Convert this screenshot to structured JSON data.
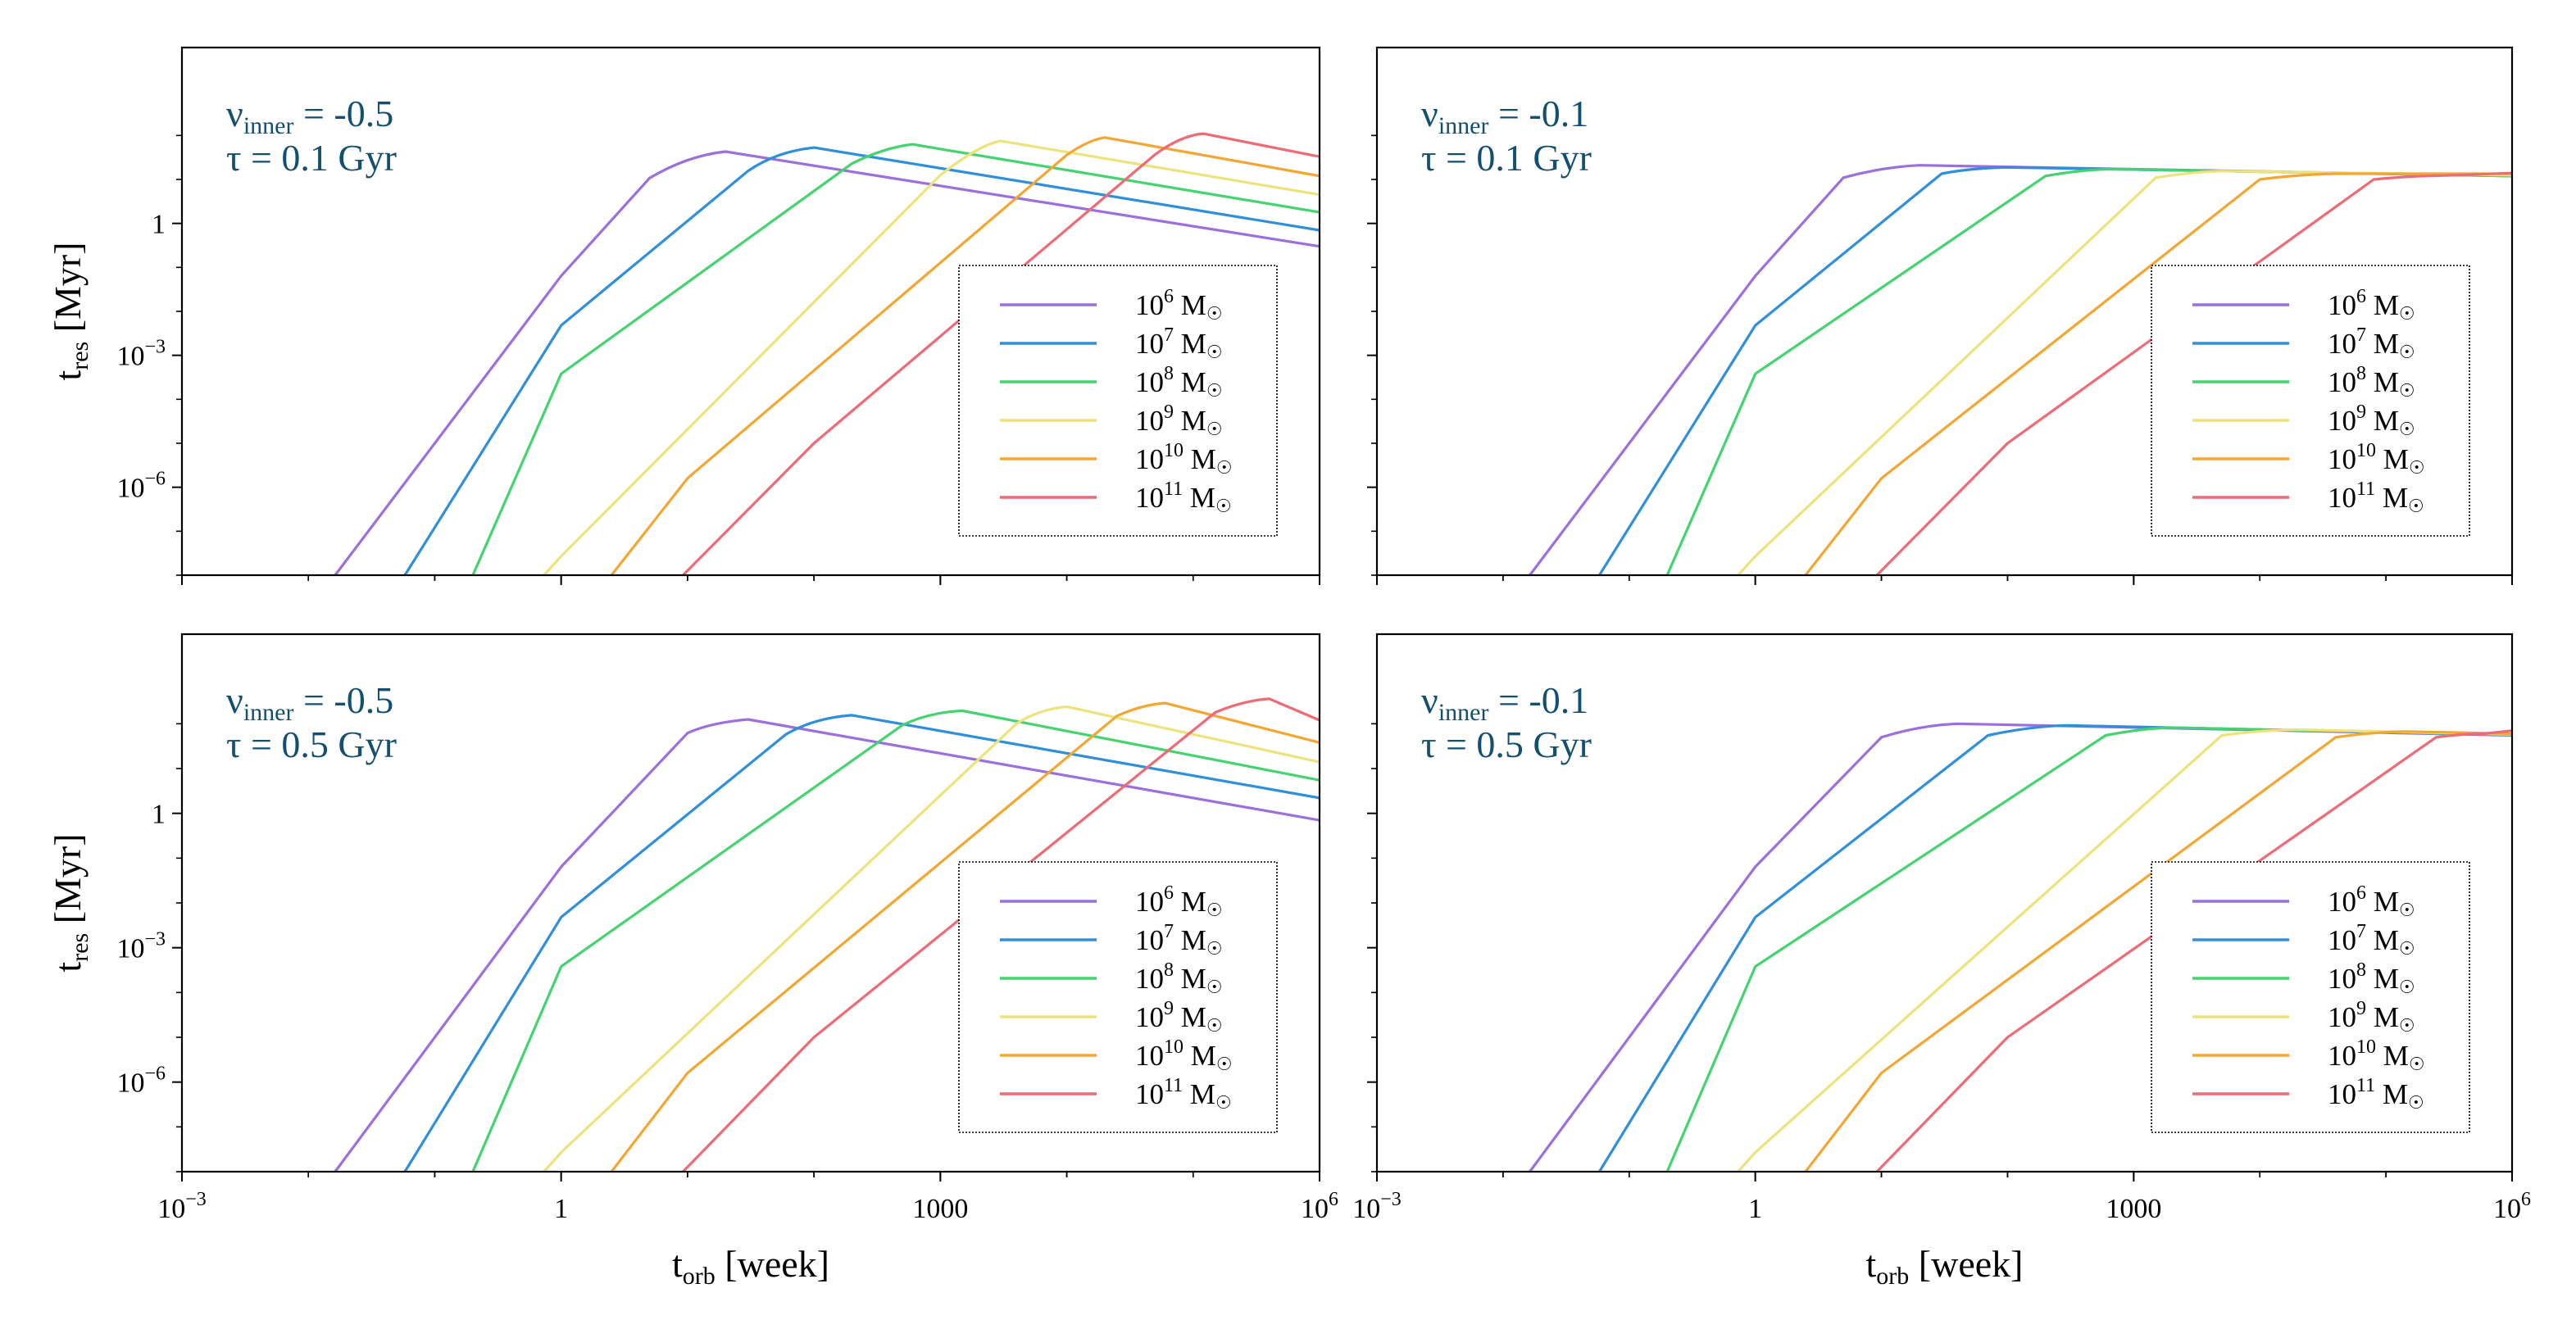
{
  "figure": {
    "xlabel_main": "t",
    "xlabel_sub": "orb",
    "xlabel_unit": " [week]",
    "ylabel_main": "t",
    "ylabel_sub": "res",
    "ylabel_unit": " [Myr]"
  },
  "chart_data": [
    {
      "type": "line",
      "panel": "top-left",
      "annotation": {
        "nu_main": "ν",
        "nu_sub": "inner",
        "nu_value": " = -0.5",
        "tau": "τ = 0.1 Gyr"
      },
      "x_scale": "log",
      "y_scale": "log",
      "xlim": [
        0.001,
        1000000
      ],
      "ylim": [
        1e-08,
        10000
      ],
      "xticks": [
        0.001,
        1,
        1000,
        1000000
      ],
      "yticks": [
        1e-06,
        0.001,
        1
      ],
      "show_xticklabels": false,
      "show_yticklabels": true,
      "show_xlabel": false,
      "show_ylabel": true,
      "legend_loc": "lower right",
      "series": [
        {
          "name": "10^6 M☉",
          "base": "10",
          "exp": "6",
          "unit": " M",
          "sun": "☉",
          "color": "#9b6fdc",
          "points": [
            [
              0.0163,
              1e-08
            ],
            [
              1,
              0.064
            ],
            [
              5,
              10.7
            ],
            [
              10,
              35
            ],
            [
              20,
              43
            ],
            [
              1000000,
              0.3
            ]
          ]
        },
        {
          "name": "10^7 M☉",
          "base": "10",
          "exp": "7",
          "unit": " M",
          "sun": "☉",
          "color": "#2f8fda",
          "points": [
            [
              0.058,
              1e-08
            ],
            [
              1,
              0.0048
            ],
            [
              30,
              15.5
            ],
            [
              50,
              43
            ],
            [
              100,
              53
            ],
            [
              1000000,
              0.7
            ]
          ]
        },
        {
          "name": "10^8 M☉",
          "base": "10",
          "exp": "8",
          "unit": " M",
          "sun": "☉",
          "color": "#45d36f",
          "points": [
            [
              0.2,
              1e-08
            ],
            [
              1,
              0.00038
            ],
            [
              200,
              23
            ],
            [
              350,
              52
            ],
            [
              600,
              63
            ],
            [
              1000000,
              1.8
            ]
          ]
        },
        {
          "name": "10^9 M☉",
          "base": "10",
          "exp": "9",
          "unit": " M",
          "sun": "☉",
          "color": "#ece37c",
          "points": [
            [
              0.73,
              1e-08
            ],
            [
              1,
              2.7e-08
            ],
            [
              1000,
              12.5
            ],
            [
              2000,
              60
            ],
            [
              3000,
              75
            ],
            [
              1000000,
              4.5
            ]
          ]
        },
        {
          "name": "10^10 M☉",
          "base": "10",
          "exp": "10",
          "unit": " M",
          "sun": "☉",
          "color": "#f3a733",
          "points": [
            [
              2.5,
              1e-08
            ],
            [
              10,
              1.6e-06
            ],
            [
              10000,
              36
            ],
            [
              15000,
              80
            ],
            [
              20000,
              90
            ],
            [
              1000000,
              12
            ]
          ]
        },
        {
          "name": "10^11 M☉",
          "base": "10",
          "exp": "11",
          "unit": " M",
          "sun": "☉",
          "color": "#ee6a75",
          "points": [
            [
              9.2,
              1e-08
            ],
            [
              100,
              1e-05
            ],
            [
              50000,
              37
            ],
            [
              80000,
              100
            ],
            [
              120000,
              110
            ],
            [
              1000000,
              33
            ]
          ]
        }
      ]
    },
    {
      "type": "line",
      "panel": "top-right",
      "annotation": {
        "nu_main": "ν",
        "nu_sub": "inner",
        "nu_value": " = -0.1",
        "tau": "τ = 0.1 Gyr"
      },
      "x_scale": "log",
      "y_scale": "log",
      "xlim": [
        0.001,
        1000000
      ],
      "ylim": [
        1e-08,
        10000
      ],
      "xticks": [
        0.001,
        1,
        1000,
        1000000
      ],
      "yticks": [
        1e-06,
        0.001,
        1
      ],
      "show_xticklabels": false,
      "show_yticklabels": false,
      "show_xlabel": false,
      "show_ylabel": false,
      "legend_loc": "lower right",
      "series": [
        {
          "name": "10^6 M☉",
          "base": "10",
          "exp": "6",
          "unit": " M",
          "sun": "☉",
          "color": "#9b6fdc",
          "points": [
            [
              0.0163,
              1e-08
            ],
            [
              1,
              0.064
            ],
            [
              5,
              11
            ],
            [
              10,
              19
            ],
            [
              20,
              21
            ],
            [
              1000000,
              12
            ]
          ]
        },
        {
          "name": "10^7 M☉",
          "base": "10",
          "exp": "7",
          "unit": " M",
          "sun": "☉",
          "color": "#2f8fda",
          "points": [
            [
              0.058,
              1e-08
            ],
            [
              1,
              0.0048
            ],
            [
              30,
              13.5
            ],
            [
              50,
              18
            ],
            [
              100,
              18.8
            ],
            [
              1000000,
              12
            ]
          ]
        },
        {
          "name": "10^8 M☉",
          "base": "10",
          "exp": "8",
          "unit": " M",
          "sun": "☉",
          "color": "#45d36f",
          "points": [
            [
              0.2,
              1e-08
            ],
            [
              1,
              0.00038
            ],
            [
              200,
              12
            ],
            [
              400,
              17
            ],
            [
              700,
              17.2
            ],
            [
              1000000,
              12
            ]
          ]
        },
        {
          "name": "10^9 M☉",
          "base": "10",
          "exp": "9",
          "unit": " M",
          "sun": "☉",
          "color": "#ece37c",
          "points": [
            [
              0.73,
              1e-08
            ],
            [
              1,
              2.7e-08
            ],
            [
              1500,
              11
            ],
            [
              3000,
              15
            ],
            [
              5000,
              15.5
            ],
            [
              1000000,
              12.5
            ]
          ]
        },
        {
          "name": "10^10 M☉",
          "base": "10",
          "exp": "10",
          "unit": " M",
          "sun": "☉",
          "color": "#f3a733",
          "points": [
            [
              2.5,
              1e-08
            ],
            [
              10,
              1.6e-06
            ],
            [
              10000,
              10
            ],
            [
              20000,
              13
            ],
            [
              40000,
              13.5
            ],
            [
              1000000,
              13.5
            ]
          ]
        },
        {
          "name": "10^11 M☉",
          "base": "10",
          "exp": "11",
          "unit": " M",
          "sun": "☉",
          "color": "#ee6a75",
          "points": [
            [
              9.2,
              1e-08
            ],
            [
              100,
              1e-05
            ],
            [
              80000,
              10
            ],
            [
              150000,
              12
            ],
            [
              300000,
              12.3
            ],
            [
              1000000,
              14
            ]
          ]
        }
      ]
    },
    {
      "type": "line",
      "panel": "bottom-left",
      "annotation": {
        "nu_main": "ν",
        "nu_sub": "inner",
        "nu_value": " = -0.5",
        "tau": "τ = 0.5 Gyr"
      },
      "x_scale": "log",
      "y_scale": "log",
      "xlim": [
        0.001,
        1000000
      ],
      "ylim": [
        1e-08,
        10000
      ],
      "xticks": [
        0.001,
        1,
        1000,
        1000000
      ],
      "xticklabels": [
        {
          "base": "10",
          "exp": "−3"
        },
        {
          "base": "1",
          "exp": ""
        },
        {
          "base": "1000",
          "exp": ""
        },
        {
          "base": "10",
          "exp": "6"
        }
      ],
      "yticks": [
        1e-06,
        0.001,
        1
      ],
      "show_xticklabels": true,
      "show_yticklabels": true,
      "show_xlabel": true,
      "show_ylabel": true,
      "legend_loc": "lower right",
      "series": [
        {
          "name": "10^6 M☉",
          "base": "10",
          "exp": "6",
          "unit": " M",
          "sun": "☉",
          "color": "#9b6fdc",
          "points": [
            [
              0.0163,
              1e-08
            ],
            [
              1,
              0.064
            ],
            [
              10,
              62
            ],
            [
              15,
              105
            ],
            [
              30,
              125
            ],
            [
              1000000,
              0.7
            ]
          ]
        },
        {
          "name": "10^7 M☉",
          "base": "10",
          "exp": "7",
          "unit": " M",
          "sun": "☉",
          "color": "#2f8fda",
          "points": [
            [
              0.058,
              1e-08
            ],
            [
              1,
              0.0048
            ],
            [
              60,
              58
            ],
            [
              100,
              135
            ],
            [
              200,
              155
            ],
            [
              1000000,
              2.2
            ]
          ]
        },
        {
          "name": "10^8 M☉",
          "base": "10",
          "exp": "8",
          "unit": " M",
          "sun": "☉",
          "color": "#45d36f",
          "points": [
            [
              0.2,
              1e-08
            ],
            [
              1,
              0.00038
            ],
            [
              500,
              93
            ],
            [
              800,
              180
            ],
            [
              1500,
              195
            ],
            [
              1000000,
              5.5
            ]
          ]
        },
        {
          "name": "10^9 M☉",
          "base": "10",
          "exp": "9",
          "unit": " M",
          "sun": "☉",
          "color": "#ece37c",
          "points": [
            [
              0.73,
              1e-08
            ],
            [
              1,
              2.7e-08
            ],
            [
              4000,
              100
            ],
            [
              6000,
              210
            ],
            [
              10000,
              240
            ],
            [
              1000000,
              14
            ]
          ]
        },
        {
          "name": "10^10 M☉",
          "base": "10",
          "exp": "10",
          "unit": " M",
          "sun": "☉",
          "color": "#f3a733",
          "points": [
            [
              2.5,
              1e-08
            ],
            [
              10,
              1.6e-06
            ],
            [
              25000,
              150
            ],
            [
              40000,
              270
            ],
            [
              60000,
              290
            ],
            [
              1000000,
              38
            ]
          ]
        },
        {
          "name": "10^11 M☉",
          "base": "10",
          "exp": "11",
          "unit": " M",
          "sun": "☉",
          "color": "#ee6a75",
          "points": [
            [
              9.2,
              1e-08
            ],
            [
              100,
              1e-05
            ],
            [
              150000,
              180
            ],
            [
              250000,
              330
            ],
            [
              400000,
              360
            ],
            [
              1000000,
              120
            ]
          ]
        }
      ]
    },
    {
      "type": "line",
      "panel": "bottom-right",
      "annotation": {
        "nu_main": "ν",
        "nu_sub": "inner",
        "nu_value": " = -0.1",
        "tau": "τ = 0.5 Gyr"
      },
      "x_scale": "log",
      "y_scale": "log",
      "xlim": [
        0.001,
        1000000
      ],
      "ylim": [
        1e-08,
        10000
      ],
      "xticks": [
        0.001,
        1,
        1000,
        1000000
      ],
      "xticklabels": [
        {
          "base": "10",
          "exp": "−3"
        },
        {
          "base": "1",
          "exp": ""
        },
        {
          "base": "1000",
          "exp": ""
        },
        {
          "base": "10",
          "exp": "6"
        }
      ],
      "yticks": [
        1e-06,
        0.001,
        1
      ],
      "show_xticklabels": true,
      "show_yticklabels": false,
      "show_xlabel": true,
      "show_ylabel": false,
      "legend_loc": "lower right",
      "series": [
        {
          "name": "10^6 M☉",
          "base": "10",
          "exp": "6",
          "unit": " M",
          "sun": "☉",
          "color": "#9b6fdc",
          "points": [
            [
              0.0163,
              1e-08
            ],
            [
              1,
              0.064
            ],
            [
              10,
              50
            ],
            [
              20,
              92
            ],
            [
              40,
              100
            ],
            [
              1000000,
              55
            ]
          ]
        },
        {
          "name": "10^7 M☉",
          "base": "10",
          "exp": "7",
          "unit": " M",
          "sun": "☉",
          "color": "#2f8fda",
          "points": [
            [
              0.058,
              1e-08
            ],
            [
              1,
              0.0048
            ],
            [
              70,
              55
            ],
            [
              150,
              88
            ],
            [
              300,
              92
            ],
            [
              1000000,
              56
            ]
          ]
        },
        {
          "name": "10^8 M☉",
          "base": "10",
          "exp": "8",
          "unit": " M",
          "sun": "☉",
          "color": "#45d36f",
          "points": [
            [
              0.2,
              1e-08
            ],
            [
              1,
              0.00038
            ],
            [
              600,
              55
            ],
            [
              1200,
              80
            ],
            [
              2000,
              82
            ],
            [
              1000000,
              57
            ]
          ]
        },
        {
          "name": "10^9 M☉",
          "base": "10",
          "exp": "9",
          "unit": " M",
          "sun": "☉",
          "color": "#ece37c",
          "points": [
            [
              0.73,
              1e-08
            ],
            [
              1,
              2.7e-08
            ],
            [
              5000,
              55
            ],
            [
              10000,
              72
            ],
            [
              20000,
              74
            ],
            [
              1000000,
              58
            ]
          ]
        },
        {
          "name": "10^10 M☉",
          "base": "10",
          "exp": "10",
          "unit": " M",
          "sun": "☉",
          "color": "#f3a733",
          "points": [
            [
              2.5,
              1e-08
            ],
            [
              10,
              1.6e-06
            ],
            [
              40000,
              50
            ],
            [
              80000,
              66
            ],
            [
              150000,
              67
            ],
            [
              1000000,
              60
            ]
          ]
        },
        {
          "name": "10^11 M☉",
          "base": "10",
          "exp": "11",
          "unit": " M",
          "sun": "☉",
          "color": "#ee6a75",
          "points": [
            [
              9.2,
              1e-08
            ],
            [
              100,
              1e-05
            ],
            [
              250000,
              50
            ],
            [
              400000,
              60
            ],
            [
              600000,
              60
            ],
            [
              1000000,
              70
            ]
          ]
        }
      ]
    }
  ]
}
